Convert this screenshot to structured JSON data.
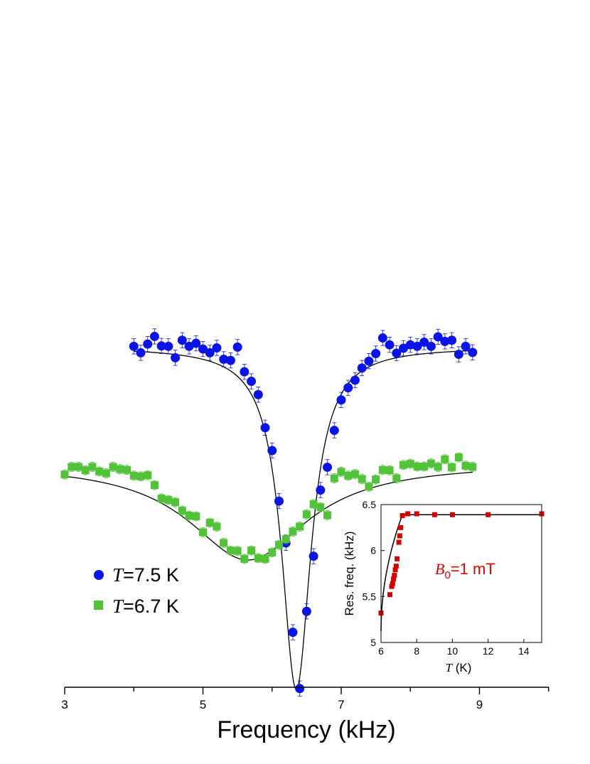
{
  "chart_data": [
    {
      "type": "scatter",
      "xlabel": "Frequency (kHz)",
      "xlim": [
        3,
        10
      ],
      "xticks": [
        3,
        5,
        7,
        9
      ],
      "series": [
        {
          "name_var": "T",
          "name_rest": "=7.5 K",
          "color": "#0a14e6",
          "marker": "circle",
          "x": [
            4.0,
            4.1,
            4.2,
            4.3,
            4.4,
            4.5,
            4.6,
            4.7,
            4.8,
            4.9,
            5.0,
            5.1,
            5.2,
            5.3,
            5.4,
            5.5,
            5.6,
            5.7,
            5.8,
            5.9,
            6.0,
            6.1,
            6.2,
            6.3,
            6.4,
            6.5,
            6.6,
            6.7,
            6.8,
            6.9,
            7.0,
            7.1,
            7.2,
            7.3,
            7.4,
            7.5,
            7.6,
            7.7,
            7.8,
            7.9,
            8.0,
            8.1,
            8.2,
            8.3,
            8.4,
            8.5,
            8.6,
            8.7,
            8.8,
            8.9
          ],
          "y": [
            0.962,
            0.945,
            0.968,
            0.988,
            0.963,
            0.962,
            0.932,
            0.978,
            0.962,
            0.97,
            0.955,
            0.945,
            0.958,
            0.928,
            0.925,
            0.96,
            0.895,
            0.87,
            0.835,
            0.748,
            0.688,
            0.555,
            0.445,
            0.21,
            0.062,
            0.265,
            0.41,
            0.584,
            0.644,
            0.741,
            0.821,
            0.853,
            0.873,
            0.905,
            0.923,
            0.943,
            0.984,
            0.966,
            0.944,
            0.957,
            0.966,
            0.962,
            0.973,
            0.962,
            0.987,
            0.975,
            0.978,
            0.941,
            0.962,
            0.946
          ],
          "yerr": 0.02
        },
        {
          "name_var": "T",
          "name_rest": "=6.7 K",
          "color": "#52c23a",
          "marker": "square",
          "x": [
            3.0,
            3.1,
            3.2,
            3.3,
            3.4,
            3.5,
            3.6,
            3.7,
            3.8,
            3.9,
            4.0,
            4.1,
            4.2,
            4.3,
            4.4,
            4.5,
            4.6,
            4.7,
            4.8,
            4.9,
            5.0,
            5.1,
            5.2,
            5.3,
            5.4,
            5.5,
            5.6,
            5.7,
            5.8,
            5.9,
            6.0,
            6.1,
            6.2,
            6.3,
            6.4,
            6.5,
            6.6,
            6.7,
            6.8,
            6.9,
            7.0,
            7.1,
            7.2,
            7.3,
            7.4,
            7.5,
            7.6,
            7.7,
            7.8,
            7.9,
            8.0,
            8.1,
            8.2,
            8.3,
            8.4,
            8.5,
            8.6,
            8.7,
            8.8,
            8.9
          ],
          "y": [
            0.625,
            0.645,
            0.645,
            0.636,
            0.645,
            0.633,
            0.628,
            0.645,
            0.639,
            0.637,
            0.622,
            0.62,
            0.623,
            0.597,
            0.562,
            0.558,
            0.552,
            0.53,
            0.517,
            0.515,
            0.473,
            0.498,
            0.488,
            0.445,
            0.425,
            0.424,
            0.403,
            0.425,
            0.405,
            0.403,
            0.42,
            0.44,
            0.455,
            0.475,
            0.488,
            0.52,
            0.547,
            0.539,
            0.518,
            0.615,
            0.632,
            0.622,
            0.626,
            0.613,
            0.593,
            0.612,
            0.637,
            0.636,
            0.615,
            0.65,
            0.653,
            0.646,
            0.646,
            0.654,
            0.645,
            0.665,
            0.644,
            0.67,
            0.648,
            0.645
          ],
          "yerr": 0.012
        }
      ],
      "fit_curves": [
        {
          "type": "lorentzian",
          "x0": 6.35,
          "gamma": 0.26,
          "base": 0.96,
          "amp": 0.9,
          "xmin": 4.0,
          "xmax": 8.9
        },
        {
          "type": "lorentzian",
          "x0": 5.65,
          "gamma": 1.05,
          "base": 0.655,
          "amp": 0.255,
          "xmin": 3.0,
          "xmax": 8.9
        }
      ],
      "legend_position": "bottom-left"
    },
    {
      "type": "scatter",
      "inset": true,
      "xlabel_var": "T",
      "xlabel_rest": " (K)",
      "ylabel": "Res. freq. (kHz)",
      "xlim": [
        6,
        15
      ],
      "ylim": [
        5,
        6.5
      ],
      "xticks": [
        6,
        8,
        10,
        12,
        14
      ],
      "yticks": [
        "5",
        "5.5",
        "6",
        "6.5"
      ],
      "ytick_values": [
        5,
        5.5,
        6,
        6.5
      ],
      "annotation_var": "B",
      "annotation_sub": "0",
      "annotation_rest": "=1 mT",
      "annotation_color": "#e30000",
      "series": [
        {
          "color": "#d40000",
          "marker": "square",
          "x": [
            6.0,
            6.5,
            6.6,
            6.65,
            6.7,
            6.75,
            6.8,
            6.85,
            6.9,
            7.0,
            7.05,
            7.1,
            7.2,
            7.5,
            8.0,
            9.0,
            10.0,
            12.0,
            15.0
          ],
          "y": [
            5.32,
            5.52,
            5.61,
            5.64,
            5.69,
            5.73,
            5.79,
            5.83,
            5.91,
            6.09,
            6.16,
            6.25,
            6.38,
            6.4,
            6.4,
            6.39,
            6.39,
            6.39,
            6.4
          ]
        }
      ],
      "fit_curve": {
        "tc": 7.2,
        "plateau": 6.39,
        "x_start": 6.0,
        "y_start": 5.12
      }
    }
  ]
}
